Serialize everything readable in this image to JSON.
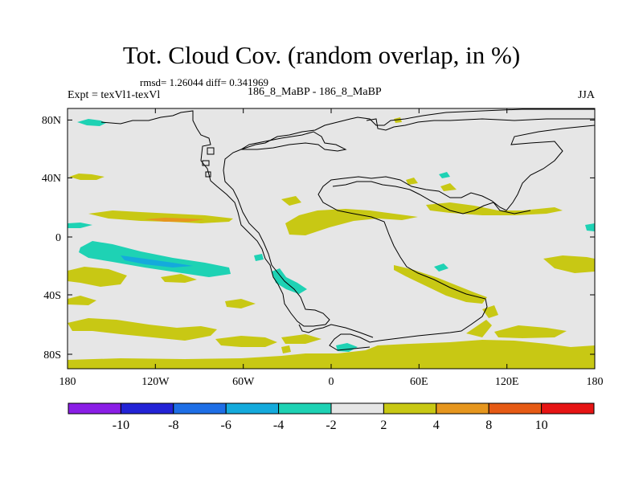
{
  "header": {
    "title": "Tot. Cloud Cov. (random overlap, in %)",
    "stats": "rmsd= 1.26044 diff= 0.341969",
    "expt": "Expt = texVl1-texVl",
    "subtitle": "186_8_MaBP - 186_8_MaBP",
    "season": "JJA"
  },
  "map": {
    "lon_ticks": [
      "180",
      "120W",
      "60W",
      "0",
      "60E",
      "120E",
      "180"
    ],
    "lat_ticks": [
      "80N",
      "40N",
      "0",
      "40S",
      "80S"
    ],
    "background_color": "#e6e6e6",
    "coastline_color": "#000000"
  },
  "colorbar": {
    "labels": [
      "-10",
      "-8",
      "-6",
      "-4",
      "-2",
      "2",
      "4",
      "8",
      "10"
    ],
    "colors": [
      "#8a1ee6",
      "#2323d6",
      "#1e6ee6",
      "#14aadc",
      "#1ed2b4",
      "#e6e6e6",
      "#c8c814",
      "#e6961e",
      "#e65a14",
      "#e61414"
    ]
  },
  "chart_data": {
    "type": "heatmap",
    "variable": "Tot. Cloud Cov. (random overlap, in %)",
    "x_range": [
      -180,
      180
    ],
    "y_range": [
      -90,
      90
    ],
    "levels": [
      -10,
      -8,
      -6,
      -4,
      -2,
      2,
      4,
      8,
      10
    ],
    "features": [
      {
        "sign": "positive",
        "level": "2 to 4",
        "lon": [
          -170,
          -110
        ],
        "lat": [
          -30,
          -40
        ],
        "note": "subtropical South Pacific band"
      },
      {
        "sign": "negative",
        "level": "-4 to -6",
        "lon": [
          -165,
          -95
        ],
        "lat": [
          -5,
          -20
        ],
        "note": "tropical East Pacific"
      },
      {
        "sign": "positive",
        "level": "2 to 4",
        "lon": [
          -165,
          -130
        ],
        "lat": [
          -65,
          -80
        ],
        "note": "Southern Ocean band"
      },
      {
        "sign": "positive",
        "level": "2 to 4",
        "lon": [
          -30,
          150
        ],
        "lat": [
          -75,
          -90
        ],
        "note": "Antarctic coast band"
      },
      {
        "sign": "positive",
        "level": "2 to 4",
        "lon": [
          45,
          110
        ],
        "lat": [
          -20,
          -40
        ],
        "note": "South Indian Ocean"
      },
      {
        "sign": "positive",
        "level": "2 to 4",
        "lon": [
          -30,
          30
        ],
        "lat": [
          5,
          15
        ],
        "note": "tropical Atlantic / Sahel"
      },
      {
        "sign": "negative",
        "level": "-2 to -4",
        "lon": [
          -40,
          -30
        ],
        "lat": [
          -25,
          -35
        ],
        "note": "South Atlantic"
      },
      {
        "sign": "negative",
        "level": "-2 to -4",
        "lon": [
          -165,
          -145
        ],
        "lat": [
          78,
          80
        ],
        "note": "Arctic"
      },
      {
        "sign": "positive",
        "level": "4 to 8",
        "lon": [
          -120,
          -95
        ],
        "lat": [
          10,
          12
        ],
        "note": "East Pacific ITCZ"
      }
    ]
  }
}
